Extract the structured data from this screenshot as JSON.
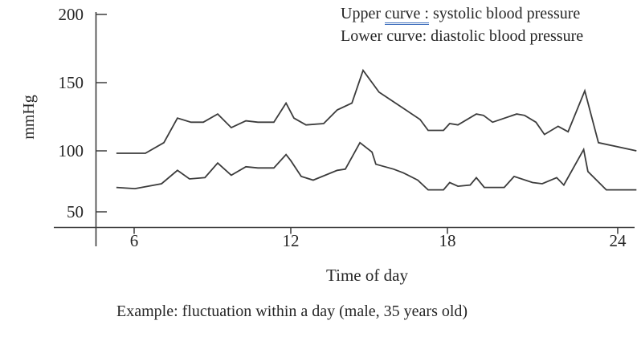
{
  "figure": {
    "legend": {
      "upper_prefix": "Upper",
      "upper_underlined": "curve :",
      "upper_suffix": "systolic blood pressure",
      "lower_line": "Lower curve: diastolic blood pressure"
    },
    "y_axis_unit": "mmHg",
    "x_axis_title": "Time of day",
    "caption": "Example: fluctuation within a day (male, 35 years old)"
  },
  "colors": {
    "background": "#ffffff",
    "curve": "#3c3c3c",
    "axis": "#3c3c3c",
    "text": "#262626",
    "grammar_underline": "#3f6fbd"
  },
  "chart_data": {
    "type": "line",
    "title": "",
    "xlabel": "Time of day",
    "ylabel": "mmHg",
    "x_ticks": [
      6,
      12,
      18,
      24
    ],
    "y_ticks": [
      200,
      150,
      100,
      50
    ],
    "xlim": [
      5,
      25
    ],
    "ylim": [
      40,
      200
    ],
    "grid": false,
    "legend_position": "top-right",
    "series": [
      {
        "name": "systolic blood pressure",
        "x": [
          5.32,
          6.43,
          7.14,
          7.66,
          8.18,
          8.65,
          9.2,
          9.72,
          10.28,
          10.74,
          11.35,
          11.82,
          12.12,
          12.58,
          13.26,
          13.78,
          14.34,
          14.77,
          15.38,
          15.54,
          16.25,
          16.95,
          17.26,
          17.85,
          18.08,
          18.37,
          19.02,
          19.27,
          19.59,
          20.44,
          20.72,
          21.12,
          21.42,
          21.9,
          22.25,
          22.84,
          23.32,
          24.66
        ],
        "values": [
          98,
          98,
          106,
          124,
          121,
          121,
          127,
          117,
          122,
          121,
          121,
          135,
          124,
          119,
          120,
          130,
          135,
          159,
          143,
          141,
          132,
          123,
          115,
          115,
          120,
          119,
          127,
          126,
          121,
          127,
          126,
          121,
          112,
          118,
          114,
          144,
          106,
          100
        ]
      },
      {
        "name": "diastolic blood pressure",
        "x": [
          5.32,
          6.03,
          7.05,
          7.66,
          8.12,
          8.71,
          9.2,
          9.72,
          10.28,
          10.74,
          11.35,
          11.82,
          12.0,
          12.4,
          12.86,
          13.78,
          14.09,
          14.65,
          15.11,
          15.26,
          15.94,
          16.31,
          16.86,
          17.26,
          17.85,
          18.08,
          18.37,
          18.8,
          19.02,
          19.3,
          20.0,
          20.35,
          21.0,
          21.34,
          21.85,
          22.1,
          22.8,
          22.95,
          23.6,
          24.66
        ],
        "values": [
          70,
          69,
          73,
          84,
          77,
          78,
          90,
          80,
          87,
          86,
          86,
          97,
          92,
          79,
          76,
          84,
          85,
          106,
          99,
          89,
          85,
          82,
          76,
          68,
          68,
          74,
          71,
          72,
          78,
          70,
          70,
          79,
          74,
          73,
          78,
          72,
          101,
          83,
          68,
          68
        ]
      }
    ]
  }
}
